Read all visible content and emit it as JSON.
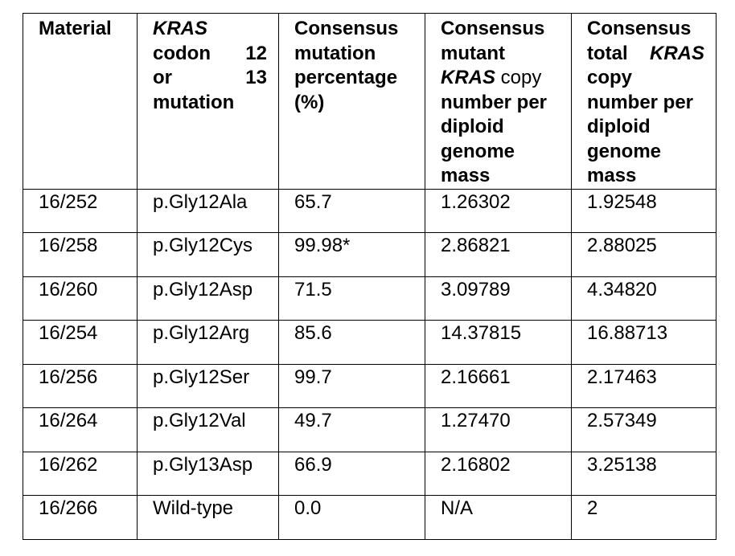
{
  "headers": {
    "material": "Material",
    "mutation": {
      "l1a": "KRAS",
      "l2a": "codon",
      "l2b": "12",
      "l3a": "or",
      "l3b": "13",
      "l4": "mutation"
    },
    "percentage": {
      "l1": "Consensus",
      "l2": "mutation",
      "l3": "percentage",
      "l4": "(%)"
    },
    "mutant_copy": {
      "l1": "Consensus",
      "l2": "mutant",
      "l3a": "KRAS",
      "l3b": " copy",
      "l4": "number per",
      "l5": "diploid",
      "l6": "genome",
      "l7": "mass"
    },
    "total_copy": {
      "l1": "Consensus",
      "l2a": "total",
      "l2b": "KRAS",
      "l3": "copy",
      "l4": "number per",
      "l5": "diploid",
      "l6": "genome",
      "l7": "mass"
    }
  },
  "rows": [
    [
      "16/252",
      "p.Gly12Ala",
      "65.7",
      "1.26302",
      "1.92548"
    ],
    [
      "16/258",
      "p.Gly12Cys",
      "99.98*",
      "2.86821",
      "2.88025"
    ],
    [
      "16/260",
      "p.Gly12Asp",
      "71.5",
      "3.09789",
      "4.34820"
    ],
    [
      "16/254",
      "p.Gly12Arg",
      "85.6",
      "14.37815",
      "16.88713"
    ],
    [
      "16/256",
      "p.Gly12Ser",
      "99.7",
      "2.16661",
      "2.17463"
    ],
    [
      "16/264",
      "p.Gly12Val",
      "49.7",
      "1.27470",
      "2.57349"
    ],
    [
      "16/262",
      "p.Gly13Asp",
      "66.9",
      "2.16802",
      "3.25138"
    ],
    [
      "16/266",
      "Wild-type",
      "0.0",
      "N/A",
      "2"
    ]
  ]
}
